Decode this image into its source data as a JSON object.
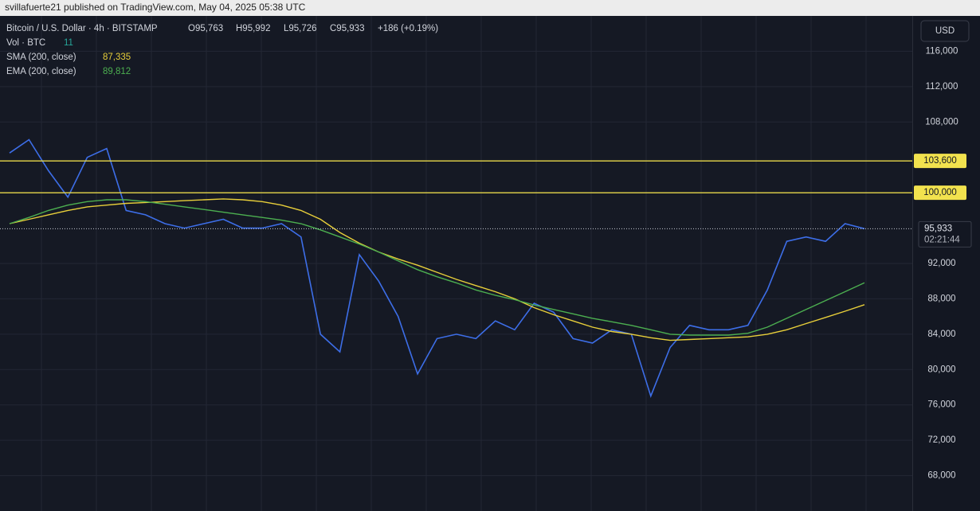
{
  "header": {
    "publisher": "svillafuerte21 published on TradingView.com, May 04, 2025 05:38 UTC"
  },
  "legend": {
    "symbol": "Bitcoin / U.S. Dollar · 4h · BITSTAMP",
    "open": "O95,763",
    "high": "H95,992",
    "low": "L95,726",
    "close": "C95,933",
    "change": "+186 (+0.19%)",
    "volume_name": "Vol · BTC",
    "volume_value": "11",
    "sma_name": "SMA (200, close)",
    "sma_value": "87,335",
    "ema_name": "EMA (200, close)",
    "ema_value": "89,812"
  },
  "chart_data": {
    "type": "line",
    "currency": "USD",
    "categories": [
      null,
      null,
      null,
      null,
      null,
      null,
      null,
      null,
      null,
      null,
      null,
      null,
      null,
      null,
      null,
      null,
      null,
      null,
      null,
      null,
      null,
      null,
      null,
      null,
      null,
      null,
      null,
      null,
      null,
      null,
      null,
      null,
      null,
      null,
      null,
      null,
      null,
      null,
      null,
      null,
      null,
      null,
      null,
      null,
      null
    ],
    "series": [
      {
        "name": "BTCUSD",
        "color": "#3d6ee8",
        "values": [
          104500,
          106000,
          102500,
          99500,
          104000,
          105000,
          98000,
          97500,
          96500,
          96000,
          96500,
          97000,
          96000,
          96000,
          96500,
          95000,
          84000,
          82000,
          93000,
          90000,
          86000,
          79500,
          83500,
          84000,
          83500,
          85500,
          84500,
          87500,
          86500,
          83500,
          83000,
          84500,
          84000,
          77000,
          82500,
          85000,
          84500,
          84500,
          85000,
          89000,
          94500,
          95000,
          94500,
          96500,
          95933
        ]
      },
      {
        "name": "SMA (200, close)",
        "color": "#e8cf3a",
        "values": [
          96500,
          97000,
          97500,
          98000,
          98400,
          98600,
          98800,
          98900,
          99000,
          99100,
          99200,
          99300,
          99200,
          99000,
          98600,
          98000,
          97000,
          95500,
          94300,
          93300,
          92500,
          91800,
          91000,
          90200,
          89500,
          88800,
          88000,
          87000,
          86200,
          85500,
          84800,
          84300,
          84000,
          83600,
          83300,
          83400,
          83500,
          83600,
          83700,
          84000,
          84500,
          85200,
          85900,
          86600,
          87335
        ]
      },
      {
        "name": "EMA (200, close)",
        "color": "#4caf50",
        "values": [
          96500,
          97200,
          98000,
          98600,
          99000,
          99200,
          99200,
          99000,
          98700,
          98400,
          98100,
          97800,
          97500,
          97200,
          96900,
          96500,
          95800,
          95000,
          94200,
          93300,
          92300,
          91300,
          90500,
          89800,
          89000,
          88400,
          87900,
          87300,
          86800,
          86300,
          85800,
          85400,
          85000,
          84500,
          84000,
          83900,
          83900,
          83900,
          84100,
          84800,
          85800,
          86800,
          87800,
          88800,
          89812
        ]
      }
    ],
    "ylim": [
      64000,
      120000
    ],
    "yticks": [
      {
        "value": 68000,
        "label": "68,000"
      },
      {
        "value": 72000,
        "label": "72,000"
      },
      {
        "value": 76000,
        "label": "76,000"
      },
      {
        "value": 80000,
        "label": "80,000"
      },
      {
        "value": 84000,
        "label": "84,000"
      },
      {
        "value": 88000,
        "label": "88,000"
      },
      {
        "value": 92000,
        "label": "92,000"
      },
      {
        "value": 100000,
        "label": "100,000"
      },
      {
        "value": 108000,
        "label": "108,000"
      },
      {
        "value": 112000,
        "label": "112,000"
      },
      {
        "value": 116000,
        "label": "116,000"
      }
    ],
    "levels": [
      {
        "value": 103600,
        "label": "103,600"
      },
      {
        "value": 100000,
        "label": "100,000"
      }
    ],
    "last_price": {
      "value": 95933,
      "label": "95,933"
    },
    "countdown": "02:21:44",
    "grid": true
  }
}
